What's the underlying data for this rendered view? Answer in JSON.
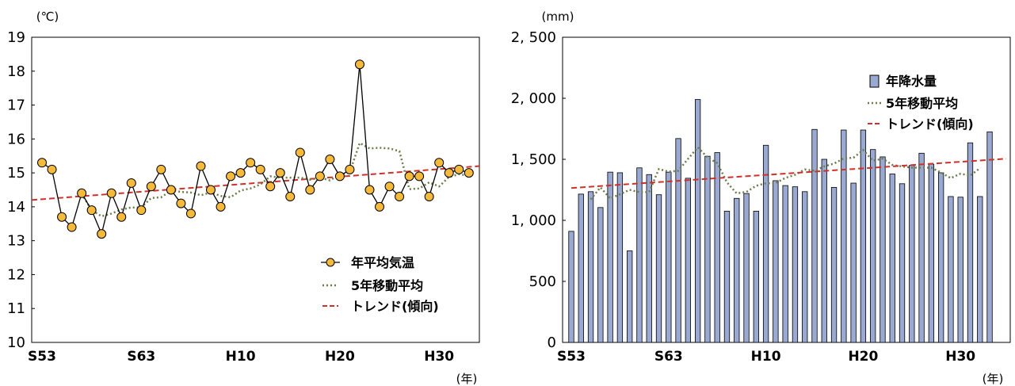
{
  "chart_data": [
    {
      "type": "line",
      "unit_label": "(℃)",
      "x_unit_label": "(年)",
      "ylim": [
        10,
        19
      ],
      "yticks": [
        "10",
        "11",
        "12",
        "13",
        "14",
        "15",
        "16",
        "17",
        "18",
        "19"
      ],
      "xtick_labels": [
        "S53",
        "S63",
        "H10",
        "H20",
        "H30"
      ],
      "xtick_index": [
        0,
        10,
        20,
        30,
        40
      ],
      "grid": false,
      "legend_position": "bottom-right",
      "colors": {
        "series": "#000000",
        "marker_fill": "#f5b93b",
        "moving_avg": "#6b7d4b",
        "trend": "#d0302a"
      },
      "series": [
        {
          "name": "年平均気温",
          "values": [
            15.3,
            15.1,
            13.7,
            13.4,
            14.4,
            13.9,
            13.2,
            14.4,
            13.7,
            14.7,
            13.9,
            14.6,
            15.1,
            14.5,
            14.1,
            13.8,
            15.2,
            14.5,
            14.0,
            14.9,
            15.0,
            15.3,
            15.1,
            14.6,
            15.0,
            14.3,
            15.6,
            14.5,
            14.9,
            15.4,
            14.9,
            15.1,
            18.2,
            14.5,
            14.0,
            14.6,
            14.3,
            14.9,
            14.9,
            14.3,
            15.3,
            15.0,
            15.1,
            15.0
          ]
        },
        {
          "name": "5年移動平均",
          "start_index": 4,
          "values": [
            14.38,
            13.9,
            13.72,
            13.8,
            13.92,
            13.98,
            13.98,
            14.26,
            14.28,
            14.48,
            14.44,
            14.42,
            14.34,
            14.42,
            14.32,
            14.28,
            14.48,
            14.54,
            14.66,
            14.9,
            14.86,
            14.86,
            14.86,
            14.8,
            14.86,
            14.78,
            14.94,
            15.02,
            15.88,
            15.72,
            15.74,
            15.72,
            15.64,
            14.52,
            14.54,
            14.72,
            14.6,
            14.88,
            14.96,
            14.92
          ]
        },
        {
          "name": "トレンド(傾向)",
          "values": [
            14.2,
            15.2
          ]
        }
      ]
    },
    {
      "type": "bar",
      "unit_label": "(mm)",
      "x_unit_label": "(年)",
      "ylim": [
        0,
        2500
      ],
      "yticks": [
        "0",
        "500",
        "1, 000",
        "1, 500",
        "2, 000",
        "2, 500"
      ],
      "xtick_labels": [
        "S53",
        "S63",
        "H10",
        "H20",
        "H30"
      ],
      "xtick_index": [
        0,
        10,
        20,
        30,
        40
      ],
      "grid": false,
      "legend_position": "top-right",
      "colors": {
        "bar": "#9aa9d2",
        "bar_edge": "#000000",
        "moving_avg": "#6b7d4b",
        "trend": "#d0302a"
      },
      "series": [
        {
          "name": "年降水量",
          "values": [
            910,
            1215,
            1235,
            1105,
            1395,
            1390,
            750,
            1430,
            1375,
            1210,
            1395,
            1670,
            1345,
            1990,
            1525,
            1555,
            1075,
            1180,
            1220,
            1075,
            1615,
            1325,
            1285,
            1275,
            1235,
            1745,
            1500,
            1270,
            1740,
            1305,
            1740,
            1580,
            1520,
            1380,
            1300,
            1450,
            1550,
            1460,
            1390,
            1195,
            1190,
            1635,
            1195,
            1725
          ]
        },
        {
          "name": "5年移動平均",
          "start_index": 2,
          "values": [
            1172,
            1270,
            1179,
            1214,
            1250,
            1231,
            1232,
            1420,
            1399,
            1406,
            1504,
            1598,
            1516,
            1469,
            1311,
            1221,
            1233,
            1283,
            1304,
            1305,
            1348,
            1373,
            1417,
            1406,
            1442,
            1465,
            1507,
            1513,
            1576,
            1489,
            1505,
            1454,
            1442,
            1432,
            1432,
            1431,
            1392,
            1346,
            1382,
            1367,
            1427
          ]
        },
        {
          "name": "トレンド(傾向)",
          "values": [
            1265,
            1505
          ]
        }
      ]
    }
  ]
}
